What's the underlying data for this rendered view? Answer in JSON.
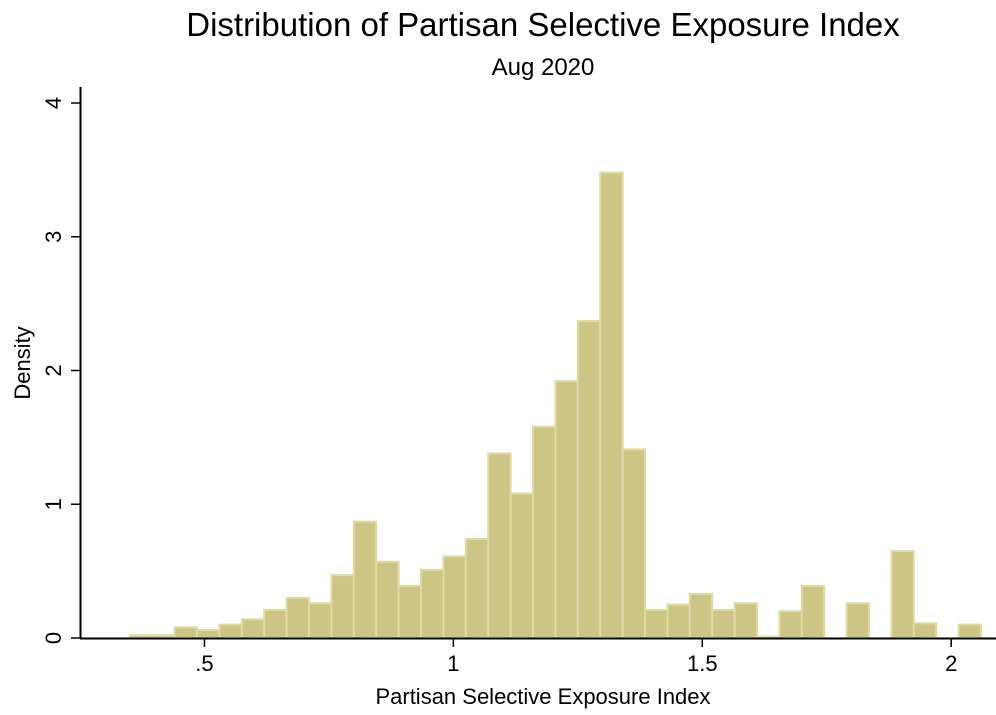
{
  "chart_data": {
    "type": "bar",
    "title": "Distribution of Partisan Selective Exposure Index",
    "subtitle": "Aug 2020",
    "xlabel": "Partisan Selective Exposure Index",
    "ylabel": "Density",
    "xlim": [
      0.25,
      2.09
    ],
    "ylim": [
      0,
      4
    ],
    "bin_width": 0.045,
    "bin_starts": [
      0.35,
      0.395,
      0.44,
      0.485,
      0.53,
      0.575,
      0.62,
      0.665,
      0.71,
      0.755,
      0.8,
      0.845,
      0.89,
      0.935,
      0.98,
      1.025,
      1.07,
      1.115,
      1.16,
      1.205,
      1.25,
      1.295,
      1.34,
      1.385,
      1.43,
      1.475,
      1.52,
      1.565,
      1.61,
      1.655,
      1.7,
      1.745,
      1.79,
      1.835,
      1.88,
      1.925,
      1.97,
      2.015
    ],
    "values": [
      0.02,
      0.02,
      0.08,
      0.06,
      0.1,
      0.14,
      0.21,
      0.3,
      0.26,
      0.47,
      0.87,
      0.57,
      0.39,
      0.51,
      0.61,
      0.74,
      1.38,
      1.08,
      1.58,
      1.92,
      2.37,
      3.48,
      1.41,
      0.21,
      0.25,
      0.33,
      0.21,
      0.26,
      0.01,
      0.2,
      0.39,
      0.0,
      0.26,
      0.0,
      0.65,
      0.11,
      0.0,
      0.1
    ],
    "x_ticks": [
      {
        "value": 0.5,
        "label": ".5"
      },
      {
        "value": 1,
        "label": "1"
      },
      {
        "value": 1.5,
        "label": "1.5"
      },
      {
        "value": 2,
        "label": "2"
      }
    ],
    "y_ticks": [
      {
        "value": 0,
        "label": "0"
      },
      {
        "value": 1,
        "label": "1"
      },
      {
        "value": 2,
        "label": "2"
      },
      {
        "value": 3,
        "label": "3"
      },
      {
        "value": 4,
        "label": "4"
      }
    ],
    "grid": false,
    "colors": {
      "bar_fill": "#ccc586",
      "bar_edge": "#e0dba5",
      "axis": "#000000"
    }
  }
}
